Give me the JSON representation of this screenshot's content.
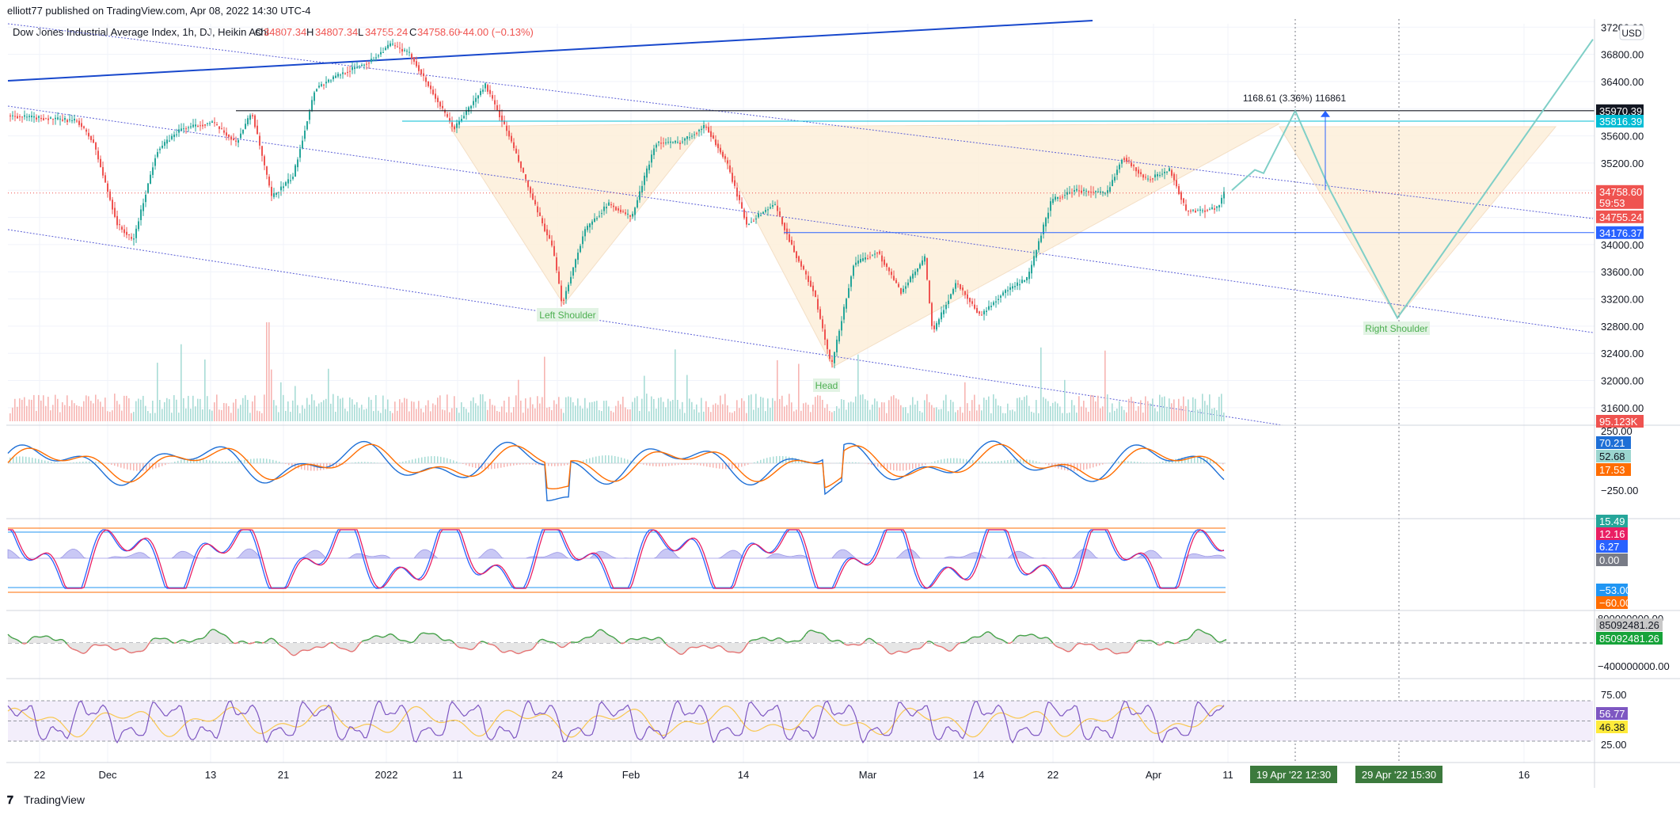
{
  "header": {
    "publisher": "elliott77 published on TradingView.com, Apr 08, 2022 14:30 UTC-4",
    "symbol": "Dow Jones Industrial Average Index, 1h, DJ, Heikin Ashi",
    "ohlc": {
      "open_label": "O",
      "open": "34807.34",
      "high_label": "H",
      "high": "34807.34",
      "low_label": "L",
      "low": "34755.24",
      "close_label": "C",
      "close": "34758.60",
      "change": "−44.00 (−0.13%)"
    },
    "currency": "USD"
  },
  "footer": {
    "brand": "TradingView"
  },
  "colors": {
    "up": "#26a69a",
    "down": "#ef5350",
    "channel": "#5b5fd6",
    "trendline": "#1848cc",
    "pattern_fill": "#fdf0dc",
    "projection": "#7fcfc7",
    "annotation_green": "#4caf50"
  },
  "chart_data": [
    {
      "type": "candlestick",
      "pane": "price",
      "candle_style": "Heikin Ashi",
      "x_ticks": [
        "22",
        "Dec",
        "13",
        "21",
        "2022",
        "11",
        "24",
        "Feb",
        "14",
        "Mar",
        "14",
        "22",
        "Apr",
        "11",
        "16"
      ],
      "x_date_tags": [
        "19 Apr '22  12:30",
        "29 Apr '22  15:30"
      ],
      "y_ticks": [
        "37200.00",
        "36800.00",
        "36400.00",
        "36000.00",
        "35600.00",
        "35200.00",
        "34800.00",
        "34400.00",
        "34000.00",
        "33600.00",
        "33200.00",
        "32800.00",
        "32400.00",
        "32000.00",
        "31600.00"
      ],
      "ylim": [
        31400,
        37250
      ],
      "price_tags": [
        {
          "value": "35970.39",
          "color": "#131722"
        },
        {
          "value": "35816.39",
          "color": "#00bcd4"
        },
        {
          "value": "34758.60",
          "color": "#ef5350"
        },
        {
          "value": "59:53",
          "color": "#ef5350"
        },
        {
          "value": "34755.24",
          "color": "#ef5350"
        },
        {
          "value": "34176.37",
          "color": "#2962ff"
        },
        {
          "value": "95.123K",
          "color": "#ef5350"
        }
      ],
      "key_points": {
        "start_close": 35900,
        "left_shoulder_low": 33120,
        "head_low": 32200,
        "pattern_neckline_high": 35780,
        "last_close": 34758.6,
        "projected_target": 35970.39,
        "projected_right_shoulder_low": 32920
      },
      "horizontal_levels": [
        35970.39,
        35816.39,
        34176.37
      ],
      "annotations": [
        "Left Shoulder",
        "Head",
        "Right Shoulder",
        "1168.61 (3.36%) 116861"
      ]
    },
    {
      "type": "bar",
      "pane": "volume",
      "series_name": "Volume",
      "last_value": "95.123K"
    },
    {
      "type": "line",
      "pane": "macd",
      "y_ticks": [
        "250.00",
        "−250.00"
      ],
      "last_values": [
        "70.21",
        "52.68",
        "17.53"
      ],
      "value_colors": [
        "#1e6fd6",
        "#9bd5cf",
        "#ff6d00"
      ]
    },
    {
      "type": "line",
      "pane": "stochastic",
      "last_values": [
        "15.49",
        "12.16",
        "6.27",
        "0.00",
        "−53.00",
        "−60.00"
      ],
      "value_colors": [
        "#26a69a",
        "#e91e63",
        "#2962ff",
        "#787b86",
        "#2196f3",
        "#ff6d00"
      ]
    },
    {
      "type": "area",
      "pane": "obv",
      "y_ticks": [
        "800000000.00",
        "−400000000.00"
      ],
      "last_values": [
        "85092481.26",
        "85092481.26"
      ],
      "value_colors": [
        "#c8c8c8",
        "#17a33a"
      ]
    },
    {
      "type": "line",
      "pane": "rsi",
      "y_ticks": [
        "75.00",
        "25.00"
      ],
      "band": [
        30,
        70
      ],
      "last_values": [
        "56.77",
        "46.38"
      ],
      "value_colors": [
        "#7e57c2",
        "#ffeb3b"
      ]
    }
  ]
}
